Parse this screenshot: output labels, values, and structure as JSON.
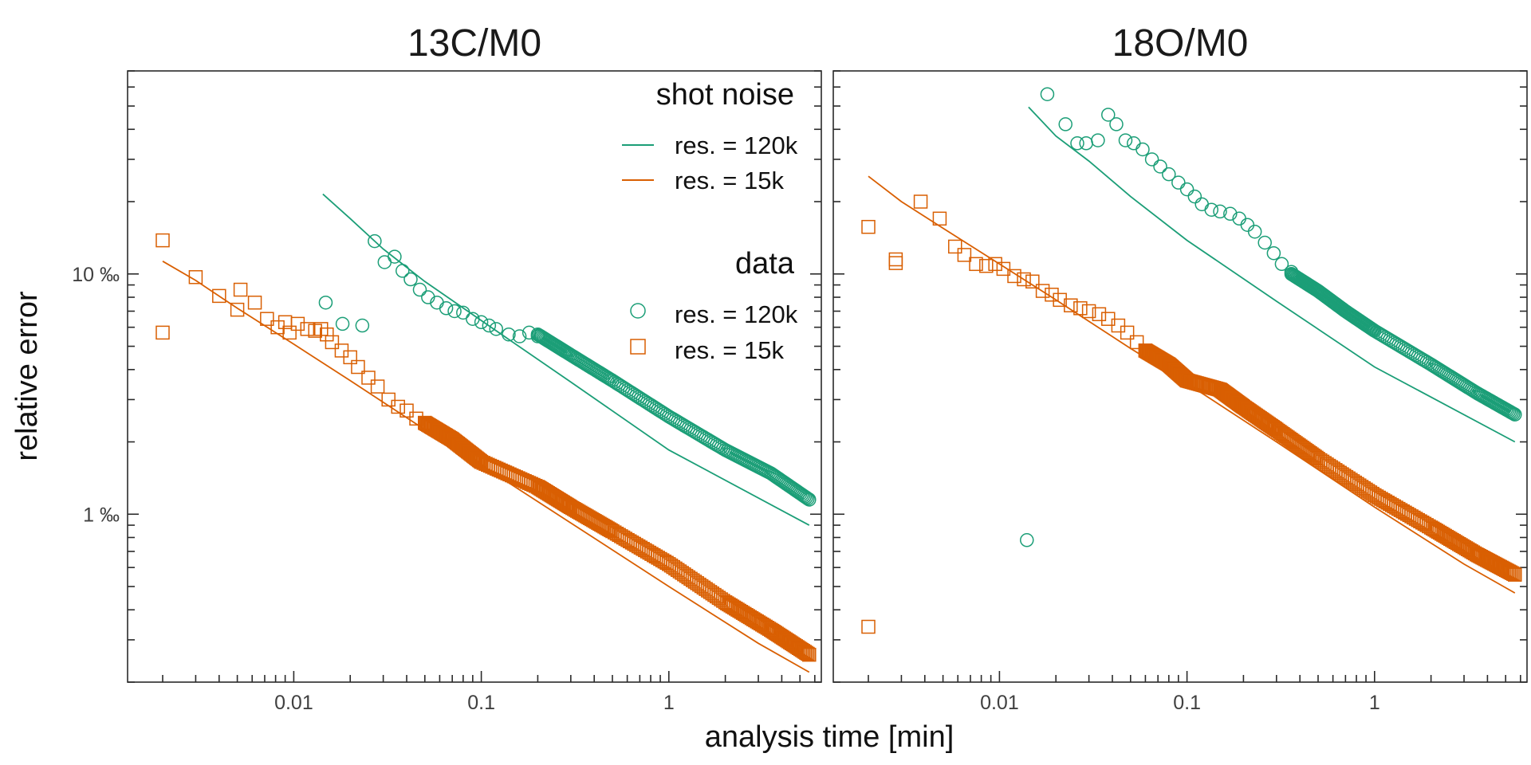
{
  "chart_data": {
    "type": "scatter",
    "xlabel": "analysis time [min]",
    "ylabel": "relative error",
    "x_scale": "log",
    "y_scale": "log",
    "xlim": [
      0.0013,
      6.5
    ],
    "ylim": [
      0.2,
      70
    ],
    "x_ticks": [
      {
        "value": 0.01,
        "label": "0.01"
      },
      {
        "value": 0.1,
        "label": "0.1"
      },
      {
        "value": 1,
        "label": "1"
      }
    ],
    "y_ticks": [
      {
        "value": 1,
        "label": "1 ‰"
      },
      {
        "value": 10,
        "label": "10 ‰"
      }
    ],
    "grid": false,
    "colors": {
      "res_120k": "#1b9e77",
      "res_15k": "#d95f02"
    },
    "legend": {
      "placement": "top-right of left panel",
      "groups": [
        {
          "title": "shot noise",
          "marker": "line",
          "entries": [
            {
              "label": "res. = 120k",
              "color": "#1b9e77"
            },
            {
              "label": "res. = 15k",
              "color": "#d95f02"
            }
          ]
        },
        {
          "title": "data",
          "marker": "point",
          "entries": [
            {
              "label": "res. = 120k",
              "shape": "circle",
              "color": "#1b9e77"
            },
            {
              "label": "res. = 15k",
              "shape": "square",
              "color": "#d95f02"
            }
          ]
        }
      ]
    },
    "panels": [
      {
        "title": "13C/M0",
        "series": [
          {
            "group": "shot noise",
            "label": "res. = 120k",
            "kind": "line",
            "color": "#1b9e77",
            "x": [
              0.0143,
              0.02,
              0.03,
              0.05,
              0.1,
              0.3,
              1,
              5.6
            ],
            "y": [
              21.5,
              17.0,
              12.7,
              9.3,
              6.4,
              3.55,
              1.85,
              0.9
            ]
          },
          {
            "group": "shot noise",
            "label": "res. = 15k",
            "kind": "line",
            "color": "#d95f02",
            "x": [
              0.002,
              0.003,
              0.005,
              0.01,
              0.02,
              0.05,
              0.1,
              0.3,
              1,
              3,
              5.6
            ],
            "y": [
              11.3,
              9.4,
              7.2,
              5.1,
              3.6,
              2.25,
              1.6,
              0.92,
              0.5,
              0.29,
              0.22
            ]
          },
          {
            "group": "data",
            "label": "res. = 120k",
            "kind": "circle",
            "color": "#1b9e77",
            "points": [
              [
                0.0148,
                7.6
              ],
              [
                0.0182,
                6.2
              ],
              [
                0.0232,
                6.1
              ],
              [
                0.027,
                13.7
              ],
              [
                0.0305,
                11.2
              ],
              [
                0.0345,
                11.8
              ],
              [
                0.038,
                10.3
              ],
              [
                0.042,
                9.5
              ],
              [
                0.047,
                8.6
              ],
              [
                0.052,
                8.0
              ],
              [
                0.058,
                7.6
              ],
              [
                0.065,
                7.2
              ],
              [
                0.072,
                7.0
              ],
              [
                0.08,
                6.9
              ],
              [
                0.09,
                6.5
              ],
              [
                0.1,
                6.3
              ],
              [
                0.11,
                6.1
              ],
              [
                0.12,
                5.9
              ],
              [
                0.14,
                5.6
              ],
              [
                0.16,
                5.5
              ],
              [
                0.18,
                5.7
              ],
              [
                0.2,
                5.5
              ]
            ],
            "trend": [
              [
                0.2,
                5.6
              ],
              [
                0.3,
                4.6
              ],
              [
                0.5,
                3.6
              ],
              [
                1.0,
                2.55
              ],
              [
                2.0,
                1.85
              ],
              [
                3.5,
                1.48
              ],
              [
                5.6,
                1.15
              ]
            ]
          },
          {
            "group": "data",
            "label": "res. = 15k",
            "kind": "square",
            "color": "#d95f02",
            "points": [
              [
                0.002,
                13.8
              ],
              [
                0.002,
                5.7
              ],
              [
                0.003,
                9.7
              ],
              [
                0.004,
                8.1
              ],
              [
                0.005,
                7.1
              ],
              [
                0.0052,
                8.6
              ],
              [
                0.0062,
                7.6
              ],
              [
                0.0072,
                6.5
              ],
              [
                0.0082,
                6.0
              ],
              [
                0.009,
                6.3
              ],
              [
                0.0095,
                5.7
              ],
              [
                0.0105,
                6.2
              ],
              [
                0.0118,
                5.9
              ],
              [
                0.013,
                5.8
              ],
              [
                0.014,
                5.9
              ],
              [
                0.015,
                5.6
              ],
              [
                0.016,
                5.2
              ],
              [
                0.018,
                4.8
              ],
              [
                0.02,
                4.5
              ],
              [
                0.022,
                4.1
              ],
              [
                0.025,
                3.7
              ],
              [
                0.028,
                3.4
              ],
              [
                0.032,
                3.0
              ],
              [
                0.036,
                2.8
              ],
              [
                0.04,
                2.7
              ],
              [
                0.045,
                2.5
              ],
              [
                0.05,
                2.4
              ]
            ],
            "trend": [
              [
                0.05,
                2.4
              ],
              [
                0.07,
                2.05
              ],
              [
                0.1,
                1.65
              ],
              [
                0.2,
                1.3
              ],
              [
                0.3,
                1.07
              ],
              [
                0.5,
                0.85
              ],
              [
                1.0,
                0.62
              ],
              [
                2.0,
                0.43
              ],
              [
                3.5,
                0.33
              ],
              [
                5.6,
                0.26
              ]
            ]
          }
        ]
      },
      {
        "title": "18O/M0",
        "series": [
          {
            "group": "shot noise",
            "label": "res. = 120k",
            "kind": "line",
            "color": "#1b9e77",
            "x": [
              0.0143,
              0.02,
              0.03,
              0.05,
              0.1,
              0.3,
              1,
              5.6
            ],
            "y": [
              49.5,
              37.5,
              29.5,
              21.0,
              13.8,
              7.7,
              4.1,
              2.0
            ]
          },
          {
            "group": "shot noise",
            "label": "res. = 15k",
            "kind": "line",
            "color": "#d95f02",
            "x": [
              0.002,
              0.003,
              0.005,
              0.01,
              0.02,
              0.05,
              0.1,
              0.3,
              1,
              3,
              5.6
            ],
            "y": [
              25.5,
              20.0,
              15.5,
              11.0,
              7.8,
              4.9,
              3.5,
              2.0,
              1.07,
              0.62,
              0.47
            ]
          },
          {
            "group": "data",
            "label": "res. = 120k",
            "kind": "circle",
            "color": "#1b9e77",
            "points": [
              [
                0.014,
                0.78
              ],
              [
                0.018,
                56.0
              ],
              [
                0.0225,
                42.0
              ],
              [
                0.026,
                35.0
              ],
              [
                0.029,
                35.0
              ],
              [
                0.0335,
                36.0
              ],
              [
                0.038,
                46.0
              ],
              [
                0.042,
                42.0
              ],
              [
                0.047,
                36.0
              ],
              [
                0.052,
                35.0
              ],
              [
                0.058,
                33.0
              ],
              [
                0.065,
                30.0
              ],
              [
                0.072,
                28.0
              ],
              [
                0.08,
                26.0
              ],
              [
                0.09,
                24.0
              ],
              [
                0.1,
                22.5
              ],
              [
                0.11,
                21.0
              ],
              [
                0.12,
                19.5
              ],
              [
                0.135,
                18.5
              ],
              [
                0.15,
                18.2
              ],
              [
                0.17,
                17.8
              ],
              [
                0.19,
                17.0
              ],
              [
                0.21,
                16.0
              ],
              [
                0.23,
                15.0
              ],
              [
                0.26,
                13.5
              ],
              [
                0.29,
                12.2
              ],
              [
                0.32,
                11.0
              ],
              [
                0.36,
                10.2
              ]
            ],
            "trend": [
              [
                0.36,
                10.0
              ],
              [
                0.5,
                8.5
              ],
              [
                0.7,
                7.0
              ],
              [
                1.0,
                5.8
              ],
              [
                2.0,
                4.2
              ],
              [
                3.5,
                3.2
              ],
              [
                5.6,
                2.6
              ]
            ]
          },
          {
            "group": "data",
            "label": "res. = 15k",
            "kind": "square",
            "color": "#d95f02",
            "points": [
              [
                0.002,
                15.7
              ],
              [
                0.002,
                0.34
              ],
              [
                0.0028,
                11.1
              ],
              [
                0.0028,
                11.5
              ],
              [
                0.0038,
                20.0
              ],
              [
                0.0048,
                17.0
              ],
              [
                0.0058,
                13.0
              ],
              [
                0.0065,
                12.0
              ],
              [
                0.0075,
                11.0
              ],
              [
                0.0085,
                10.8
              ],
              [
                0.0095,
                11.0
              ],
              [
                0.0105,
                10.5
              ],
              [
                0.012,
                9.8
              ],
              [
                0.0135,
                9.5
              ],
              [
                0.015,
                9.3
              ],
              [
                0.017,
                8.5
              ],
              [
                0.019,
                8.2
              ],
              [
                0.021,
                7.8
              ],
              [
                0.024,
                7.4
              ],
              [
                0.027,
                7.2
              ],
              [
                0.03,
                7.0
              ],
              [
                0.034,
                6.8
              ],
              [
                0.038,
                6.5
              ],
              [
                0.043,
                6.1
              ],
              [
                0.048,
                5.7
              ],
              [
                0.054,
                5.2
              ],
              [
                0.06,
                4.8
              ]
            ],
            "trend": [
              [
                0.06,
                4.8
              ],
              [
                0.08,
                4.2
              ],
              [
                0.1,
                3.6
              ],
              [
                0.15,
                3.3
              ],
              [
                0.2,
                2.8
              ],
              [
                0.3,
                2.25
              ],
              [
                0.5,
                1.7
              ],
              [
                1.0,
                1.2
              ],
              [
                2.0,
                0.88
              ],
              [
                3.5,
                0.68
              ],
              [
                5.6,
                0.56
              ]
            ]
          }
        ]
      }
    ]
  }
}
